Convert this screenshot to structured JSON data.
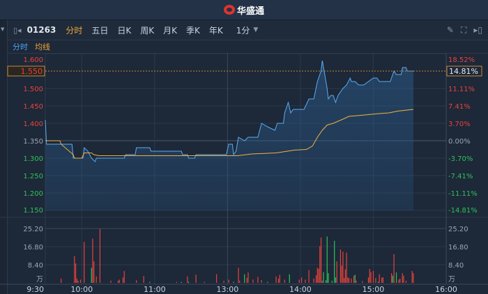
{
  "header": {
    "brand": "华盛通",
    "logo_icon": "flame-logo"
  },
  "toolbar": {
    "code": "01263",
    "tabs": [
      "分时",
      "五日",
      "日K",
      "周K",
      "月K",
      "季K",
      "年K"
    ],
    "active_tab": "分时",
    "interval": "1分",
    "icons": [
      "pencil-icon",
      "fullscreen-icon",
      "exit-panel-icon"
    ]
  },
  "subtabs": {
    "line": "分时",
    "avg": "均线"
  },
  "colors": {
    "price_line": "#5aaef5",
    "avg_line": "#f0b440",
    "up": "#e8433c",
    "down": "#2fc25b",
    "bg": "#1d2838",
    "current_marker": "#c98a3a"
  },
  "chart_data": {
    "type": "line",
    "prev_close": 1.35,
    "current_price": "1.550",
    "current_pct": "14.81%",
    "price_ticks": [
      "1.600",
      "1.550",
      "1.500",
      "1.450",
      "1.400",
      "1.350",
      "1.300",
      "1.250",
      "1.200",
      "1.150"
    ],
    "pct_ticks": [
      "18.52%",
      "14.81%",
      "11.11%",
      "7.41%",
      "3.70%",
      "0.00%",
      "-3.70%",
      "-7.41%",
      "-11.11%",
      "-14.81%"
    ],
    "ylim": [
      1.15,
      1.6
    ],
    "volume_ticks": [
      "25.20",
      "16.80",
      "8.40"
    ],
    "volume_unit": "万",
    "volume_ylim": [
      0,
      25.2
    ],
    "time_ticks": [
      "9:30",
      "10:00",
      "11:00",
      "13:00",
      "14:00",
      "15:00",
      "16:00"
    ],
    "grid": true,
    "price_series": [
      [
        "9:30",
        1.41
      ],
      [
        "9:31",
        1.34
      ],
      [
        "9:52",
        1.34
      ],
      [
        "9:53",
        1.3
      ],
      [
        "10:01",
        1.3
      ],
      [
        "10:02",
        1.33
      ],
      [
        "10:05",
        1.32
      ],
      [
        "10:08",
        1.3
      ],
      [
        "10:11",
        1.29
      ],
      [
        "10:12",
        1.3
      ],
      [
        "10:35",
        1.3
      ],
      [
        "10:36",
        1.31
      ],
      [
        "10:44",
        1.31
      ],
      [
        "10:45",
        1.33
      ],
      [
        "10:56",
        1.33
      ],
      [
        "10:57",
        1.32
      ],
      [
        "11:22",
        1.32
      ],
      [
        "11:23",
        1.31
      ],
      [
        "11:27",
        1.31
      ],
      [
        "11:28",
        1.3
      ],
      [
        "11:33",
        1.3
      ],
      [
        "11:34",
        1.31
      ],
      [
        "11:59",
        1.31
      ],
      [
        "13:01",
        1.34
      ],
      [
        "13:04",
        1.34
      ],
      [
        "13:05",
        1.31
      ],
      [
        "13:07",
        1.32
      ],
      [
        "13:09",
        1.36
      ],
      [
        "13:14",
        1.35
      ],
      [
        "13:17",
        1.36
      ],
      [
        "13:25",
        1.36
      ],
      [
        "13:28",
        1.4
      ],
      [
        "13:33",
        1.39
      ],
      [
        "13:39",
        1.38
      ],
      [
        "13:41",
        1.4
      ],
      [
        "13:46",
        1.4
      ],
      [
        "13:47",
        1.43
      ],
      [
        "13:50",
        1.46
      ],
      [
        "13:52",
        1.43
      ],
      [
        "13:54",
        1.44
      ],
      [
        "14:03",
        1.44
      ],
      [
        "14:07",
        1.47
      ],
      [
        "14:11",
        1.47
      ],
      [
        "14:14",
        1.52
      ],
      [
        "14:17",
        1.55
      ],
      [
        "14:18",
        1.58
      ],
      [
        "14:20",
        1.54
      ],
      [
        "14:22",
        1.5
      ],
      [
        "14:23",
        1.47
      ],
      [
        "14:25",
        1.48
      ],
      [
        "14:27",
        1.48
      ],
      [
        "14:29",
        1.46
      ],
      [
        "14:31",
        1.48
      ],
      [
        "14:35",
        1.5
      ],
      [
        "14:38",
        1.51
      ],
      [
        "14:41",
        1.53
      ],
      [
        "14:42",
        1.52
      ],
      [
        "14:45",
        1.52
      ],
      [
        "14:48",
        1.51
      ],
      [
        "14:52",
        1.51
      ],
      [
        "14:56",
        1.52
      ],
      [
        "15:00",
        1.53
      ],
      [
        "15:03",
        1.53
      ],
      [
        "15:05",
        1.52
      ],
      [
        "15:14",
        1.52
      ],
      [
        "15:17",
        1.55
      ],
      [
        "15:19",
        1.54
      ],
      [
        "15:23",
        1.54
      ],
      [
        "15:24",
        1.56
      ],
      [
        "15:27",
        1.56
      ],
      [
        "15:28",
        1.55
      ],
      [
        "15:33",
        1.55
      ]
    ],
    "avg_series": [
      [
        "9:30",
        1.35
      ],
      [
        "9:42",
        1.35
      ],
      [
        "9:43",
        1.34
      ],
      [
        "9:53",
        1.31
      ],
      [
        "9:54",
        1.3
      ],
      [
        "10:00",
        1.3
      ],
      [
        "10:02",
        1.315
      ],
      [
        "10:08",
        1.315
      ],
      [
        "10:10",
        1.31
      ],
      [
        "10:14",
        1.307
      ],
      [
        "13:08",
        1.307
      ],
      [
        "13:20",
        1.312
      ],
      [
        "13:40",
        1.315
      ],
      [
        "13:55",
        1.323
      ],
      [
        "14:05",
        1.325
      ],
      [
        "14:10",
        1.335
      ],
      [
        "14:14",
        1.36
      ],
      [
        "14:18",
        1.38
      ],
      [
        "14:22",
        1.395
      ],
      [
        "14:27",
        1.4
      ],
      [
        "14:35",
        1.412
      ],
      [
        "14:40",
        1.42
      ],
      [
        "14:50",
        1.423
      ],
      [
        "15:05",
        1.428
      ],
      [
        "15:13",
        1.43
      ],
      [
        "15:20",
        1.435
      ],
      [
        "15:33",
        1.44
      ]
    ],
    "volume": [
      [
        "9:43",
        2,
        "up"
      ],
      [
        "9:54",
        12.5,
        "up"
      ],
      [
        "9:55",
        9,
        "up"
      ],
      [
        "9:56",
        2,
        "up"
      ],
      [
        "9:57",
        1,
        "up"
      ],
      [
        "9:59",
        1.5,
        "up"
      ],
      [
        "10:02",
        19,
        "up"
      ],
      [
        "10:08",
        7,
        "down"
      ],
      [
        "10:09",
        20.5,
        "up"
      ],
      [
        "10:10",
        10,
        "up"
      ],
      [
        "10:12",
        3,
        "up"
      ],
      [
        "10:15",
        25,
        "up"
      ],
      [
        "10:24",
        1,
        "up"
      ],
      [
        "10:30",
        1,
        "up"
      ],
      [
        "10:31",
        1.5,
        "up"
      ],
      [
        "10:34",
        2.5,
        "up"
      ],
      [
        "10:35",
        5.5,
        "up"
      ],
      [
        "10:45",
        1.2,
        "up"
      ],
      [
        "10:51",
        3.2,
        "up"
      ],
      [
        "10:56",
        0.5,
        "down"
      ],
      [
        "11:18",
        0.5,
        "up"
      ],
      [
        "11:22",
        0.5,
        "down"
      ],
      [
        "11:27",
        3,
        "up"
      ],
      [
        "11:28",
        0.5,
        "down"
      ],
      [
        "11:34",
        3.8,
        "up"
      ],
      [
        "11:41",
        0.5,
        "up"
      ],
      [
        "11:51",
        4,
        "up"
      ],
      [
        "11:57",
        1,
        "up"
      ],
      [
        "13:01",
        1.5,
        "up"
      ],
      [
        "13:05",
        0.5,
        "down"
      ],
      [
        "13:09",
        7,
        "up"
      ],
      [
        "13:10",
        1,
        "up"
      ],
      [
        "13:14",
        4,
        "down"
      ],
      [
        "13:16",
        2.3,
        "up"
      ],
      [
        "13:17",
        4.8,
        "up"
      ],
      [
        "13:21",
        1.5,
        "up"
      ],
      [
        "13:25",
        2.8,
        "up"
      ],
      [
        "13:28",
        1.3,
        "up"
      ],
      [
        "13:33",
        0.5,
        "down"
      ],
      [
        "13:40",
        3,
        "up"
      ],
      [
        "13:42",
        2,
        "up"
      ],
      [
        "13:43",
        3.7,
        "up"
      ],
      [
        "13:47",
        1.5,
        "up"
      ],
      [
        "13:51",
        4,
        "down"
      ],
      [
        "13:59",
        1.5,
        "up"
      ],
      [
        "14:01",
        2.5,
        "up"
      ],
      [
        "14:04",
        1.5,
        "up"
      ],
      [
        "14:07",
        6,
        "up"
      ],
      [
        "14:11",
        2,
        "up"
      ],
      [
        "14:13",
        3.5,
        "up"
      ],
      [
        "14:14",
        7,
        "up"
      ],
      [
        "14:15",
        6.5,
        "up"
      ],
      [
        "14:16",
        17,
        "up"
      ],
      [
        "14:17",
        21,
        "up"
      ],
      [
        "14:18",
        1,
        "up"
      ],
      [
        "14:19",
        5,
        "down"
      ],
      [
        "14:21",
        1.2,
        "down"
      ],
      [
        "14:22",
        21.5,
        "down"
      ],
      [
        "14:23",
        4.5,
        "down"
      ],
      [
        "14:26",
        1,
        "down"
      ],
      [
        "14:28",
        19.5,
        "down"
      ],
      [
        "14:29",
        2.5,
        "down"
      ],
      [
        "14:30",
        10,
        "up"
      ],
      [
        "14:33",
        15.5,
        "up"
      ],
      [
        "14:34",
        8,
        "up"
      ],
      [
        "14:35",
        14.5,
        "up"
      ],
      [
        "14:36",
        2.3,
        "up"
      ],
      [
        "14:37",
        6.3,
        "up"
      ],
      [
        "14:38",
        14,
        "up"
      ],
      [
        "14:39",
        2.5,
        "up"
      ],
      [
        "14:40",
        2.2,
        "up"
      ],
      [
        "14:42",
        2,
        "up"
      ],
      [
        "14:44",
        3.3,
        "up"
      ],
      [
        "14:45",
        3.8,
        "down"
      ],
      [
        "14:46",
        1,
        "up"
      ],
      [
        "14:51",
        0.8,
        "up"
      ],
      [
        "14:56",
        2.5,
        "up"
      ],
      [
        "14:57",
        6.5,
        "up"
      ],
      [
        "14:58",
        5,
        "up"
      ],
      [
        "15:00",
        5.5,
        "up"
      ],
      [
        "15:02",
        2.3,
        "up"
      ],
      [
        "15:04",
        0.5,
        "down"
      ],
      [
        "15:05",
        4,
        "up"
      ],
      [
        "15:07",
        2.5,
        "up"
      ],
      [
        "15:08",
        2.5,
        "up"
      ],
      [
        "15:15",
        4.5,
        "up"
      ],
      [
        "15:16",
        3.3,
        "down"
      ],
      [
        "15:17",
        13.3,
        "up"
      ],
      [
        "15:19",
        4.8,
        "down"
      ],
      [
        "15:21",
        1.5,
        "up"
      ],
      [
        "15:22",
        2,
        "up"
      ],
      [
        "15:24",
        4.5,
        "up"
      ],
      [
        "15:25",
        3.3,
        "up"
      ],
      [
        "15:27",
        1,
        "up"
      ],
      [
        "15:32",
        5.5,
        "up"
      ],
      [
        "15:33",
        4.5,
        "up"
      ]
    ]
  }
}
